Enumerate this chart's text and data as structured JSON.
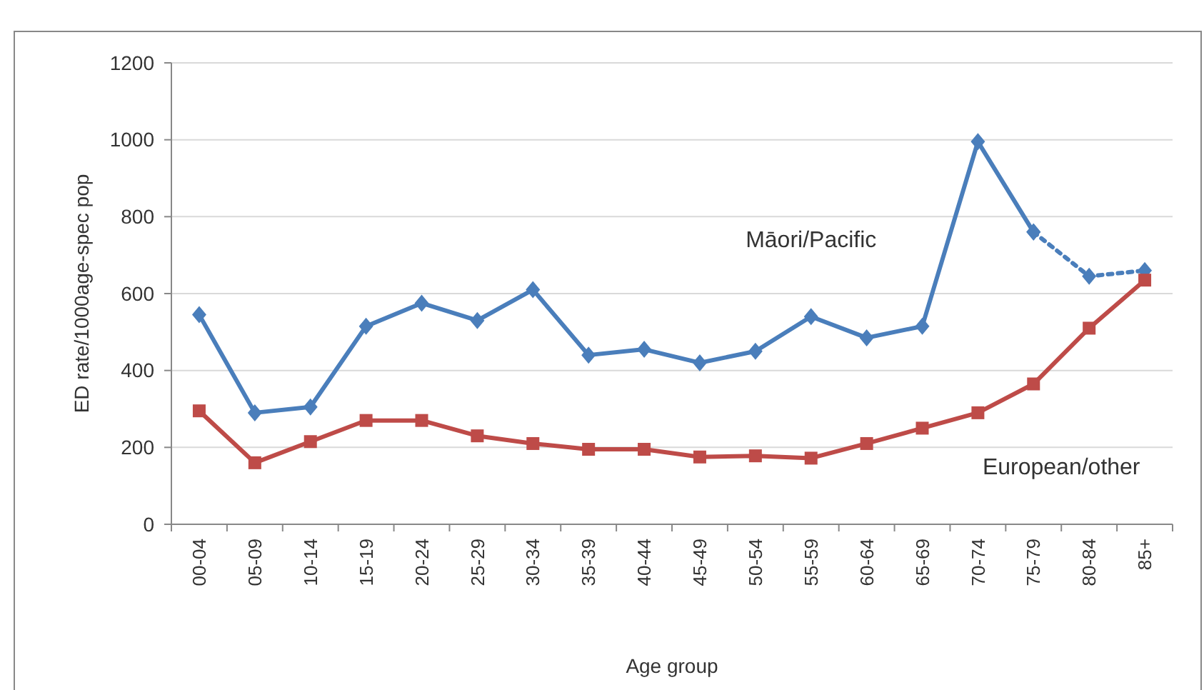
{
  "chart_data": {
    "type": "line",
    "xlabel": "Age group",
    "ylabel": "ED rate/1000age-spec pop",
    "categories": [
      "00-04",
      "05-09",
      "10-14",
      "15-19",
      "20-24",
      "25-29",
      "30-34",
      "35-39",
      "40-44",
      "45-49",
      "50-54",
      "55-59",
      "60-64",
      "65-69",
      "70-74",
      "75-79",
      "80-84",
      "85+"
    ],
    "ylim": [
      0,
      1200
    ],
    "yticks": [
      0,
      200,
      400,
      600,
      800,
      1000,
      1200
    ],
    "grid": "y",
    "series": [
      {
        "name": "Māori/Pacific",
        "color": "#4a7ebb",
        "marker": "diamond",
        "line_style": "solid",
        "values": [
          545,
          290,
          305,
          515,
          575,
          530,
          610,
          440,
          455,
          420,
          450,
          540,
          485,
          515,
          995,
          760,
          null,
          null
        ]
      },
      {
        "color": "#4a7ebb",
        "marker": "diamond",
        "line_style": "dotted",
        "values": [
          null,
          null,
          null,
          null,
          null,
          null,
          null,
          null,
          null,
          null,
          null,
          null,
          null,
          null,
          null,
          760,
          645,
          660
        ]
      },
      {
        "name": "European/other",
        "color": "#be4b48",
        "marker": "square",
        "line_style": "solid",
        "values": [
          295,
          160,
          215,
          270,
          270,
          230,
          210,
          195,
          195,
          175,
          178,
          172,
          210,
          250,
          290,
          365,
          510,
          635
        ]
      }
    ]
  }
}
